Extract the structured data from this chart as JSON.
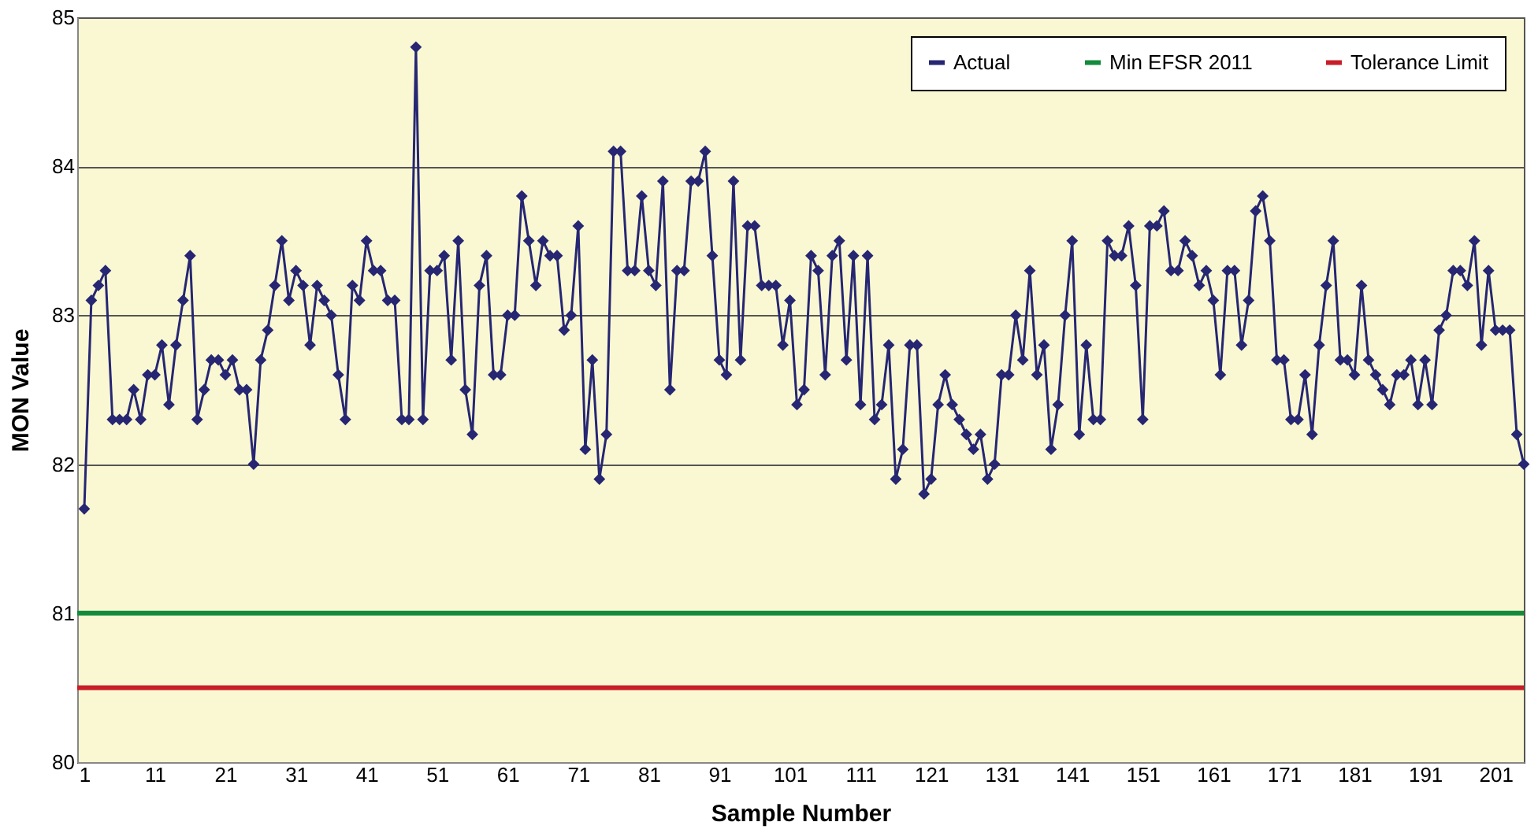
{
  "chart_data": {
    "type": "line",
    "xlabel": "Sample Number",
    "ylabel": "MON Value",
    "x": [
      1,
      2,
      3,
      4,
      5,
      6,
      7,
      8,
      9,
      10,
      11,
      12,
      13,
      14,
      15,
      16,
      17,
      18,
      19,
      20,
      21,
      22,
      23,
      24,
      25,
      26,
      27,
      28,
      29,
      30,
      31,
      32,
      33,
      34,
      35,
      36,
      37,
      38,
      39,
      40,
      41,
      42,
      43,
      44,
      45,
      46,
      47,
      48,
      49,
      50,
      51,
      52,
      53,
      54,
      55,
      56,
      57,
      58,
      59,
      60,
      61,
      62,
      63,
      64,
      65,
      66,
      67,
      68,
      69,
      70,
      71,
      72,
      73,
      74,
      75,
      76,
      77,
      78,
      79,
      80,
      81,
      82,
      83,
      84,
      85,
      86,
      87,
      88,
      89,
      90,
      91,
      92,
      93,
      94,
      95,
      96,
      97,
      98,
      99,
      100,
      101,
      102,
      103,
      104,
      105,
      106,
      107,
      108,
      109,
      110,
      111,
      112,
      113,
      114,
      115,
      116,
      117,
      118,
      119,
      120,
      121,
      122,
      123,
      124,
      125,
      126,
      127,
      128,
      129,
      130,
      131,
      132,
      133,
      134,
      135,
      136,
      137,
      138,
      139,
      140,
      141,
      142,
      143,
      144,
      145,
      146,
      147,
      148,
      149,
      150,
      151,
      152,
      153,
      154,
      155,
      156,
      157,
      158,
      159,
      160,
      161,
      162,
      163,
      164,
      165,
      166,
      167,
      168,
      169,
      170,
      171,
      172,
      173,
      174,
      175,
      176,
      177,
      178,
      179,
      180,
      181,
      182,
      183,
      184,
      185,
      186,
      187,
      188,
      189,
      190,
      191,
      192,
      193,
      194,
      195,
      196,
      197,
      198,
      199,
      200,
      201,
      202,
      203,
      204,
      205
    ],
    "series": [
      {
        "name": "Actual",
        "color": "#262673",
        "values": [
          81.7,
          83.1,
          83.2,
          83.3,
          82.3,
          82.3,
          82.3,
          82.5,
          82.3,
          82.6,
          82.6,
          82.8,
          82.4,
          82.8,
          83.1,
          83.4,
          82.3,
          82.5,
          82.7,
          82.7,
          82.6,
          82.7,
          82.5,
          82.5,
          82.0,
          82.7,
          82.9,
          83.2,
          83.5,
          83.1,
          83.3,
          83.2,
          82.8,
          83.2,
          83.1,
          83.0,
          82.6,
          82.3,
          83.2,
          83.1,
          83.5,
          83.3,
          83.3,
          83.1,
          83.1,
          82.3,
          82.3,
          84.8,
          82.3,
          83.3,
          83.3,
          83.4,
          82.7,
          83.5,
          82.5,
          82.2,
          83.2,
          83.4,
          82.6,
          82.6,
          83.0,
          83.0,
          83.8,
          83.5,
          83.2,
          83.5,
          83.4,
          83.4,
          82.9,
          83.0,
          83.6,
          82.1,
          82.7,
          81.9,
          82.2,
          84.1,
          84.1,
          83.3,
          83.3,
          83.8,
          83.3,
          83.2,
          83.9,
          82.5,
          83.3,
          83.3,
          83.9,
          83.9,
          84.1,
          83.4,
          82.7,
          82.6,
          83.9,
          82.7,
          83.6,
          83.6,
          83.2,
          83.2,
          83.2,
          82.8,
          83.1,
          82.4,
          82.5,
          83.4,
          83.3,
          82.6,
          83.4,
          83.5,
          82.7,
          83.4,
          82.4,
          83.4,
          82.3,
          82.4,
          82.8,
          81.9,
          82.1,
          82.8,
          82.8,
          81.8,
          81.9,
          82.4,
          82.6,
          82.4,
          82.3,
          82.2,
          82.1,
          82.2,
          81.9,
          82.0,
          82.6,
          82.6,
          83.0,
          82.7,
          83.3,
          82.6,
          82.8,
          82.1,
          82.4,
          83.0,
          83.5,
          82.2,
          82.8,
          82.3,
          82.3,
          83.5,
          83.4,
          83.4,
          83.6,
          83.2,
          82.3,
          83.6,
          83.6,
          83.7,
          83.3,
          83.3,
          83.5,
          83.4,
          83.2,
          83.3,
          83.1,
          82.6,
          83.3,
          83.3,
          82.8,
          83.1,
          83.7,
          83.8,
          83.5,
          82.7,
          82.7,
          82.3,
          82.3,
          82.6,
          82.2,
          82.8,
          83.2,
          83.5,
          82.7,
          82.7,
          82.6,
          83.2,
          82.7,
          82.6,
          82.5,
          82.4,
          82.6,
          82.6,
          82.7,
          82.4,
          82.7,
          82.4,
          82.9,
          83.0,
          83.3,
          83.3,
          83.2,
          83.5,
          82.8,
          83.3,
          82.9,
          82.9,
          82.9,
          82.2,
          82.0
        ]
      }
    ],
    "ref_lines": [
      {
        "axis": "y",
        "value": 81,
        "label": "Min EFSR 2011",
        "color": "#138a3c"
      },
      {
        "axis": "y",
        "value": 80.5,
        "label": "Tolerance Limit",
        "color": "#c81e28"
      }
    ],
    "xlim": [
      0,
      205
    ],
    "xticks": [
      1,
      11,
      21,
      31,
      41,
      51,
      61,
      71,
      81,
      91,
      101,
      111,
      121,
      131,
      141,
      151,
      161,
      171,
      181,
      191,
      201
    ],
    "ylim": [
      80,
      85
    ],
    "yticks": [
      80,
      81,
      82,
      83,
      84,
      85
    ],
    "grid": "y",
    "legend": "top right",
    "marker": "diamond",
    "line_style": "solid"
  }
}
